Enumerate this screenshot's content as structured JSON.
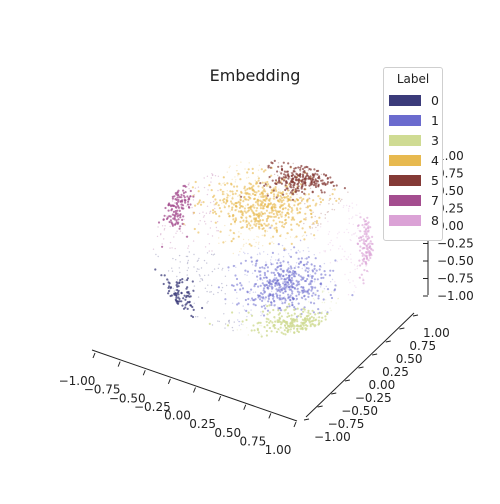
{
  "chart_data": {
    "type": "scatter",
    "title": "Embedding",
    "legend": {
      "title": "Label",
      "placement": "top-right",
      "entries": [
        {
          "label": "0",
          "color": "#3b3b7a"
        },
        {
          "label": "1",
          "color": "#6b6bce"
        },
        {
          "label": "3",
          "color": "#cfdb93"
        },
        {
          "label": "4",
          "color": "#e7b94f"
        },
        {
          "label": "5",
          "color": "#843a36"
        },
        {
          "label": "7",
          "color": "#a44d8f"
        },
        {
          "label": "8",
          "color": "#dba2d6"
        }
      ]
    },
    "x_ticks": [
      "−1.00",
      "−0.75",
      "−0.50",
      "−0.25",
      "0.00",
      "0.25",
      "0.50",
      "0.75",
      "1.00"
    ],
    "y_ticks": [
      "−1.00",
      "−0.75",
      "−0.50",
      "−0.25",
      "0.00",
      "0.25",
      "0.50",
      "0.75",
      "1.00"
    ],
    "z_ticks": [
      "−1.00",
      "−0.75",
      "−0.50",
      "−0.25",
      "0.00",
      "0.25",
      "0.50",
      "0.75",
      "1.00"
    ],
    "xlim": [
      -1,
      1
    ],
    "ylim": [
      -1,
      1
    ],
    "zlim": [
      -1,
      1
    ],
    "grid": false,
    "projection": "3d",
    "xlabel": "",
    "ylabel": "",
    "zlabel": ""
  }
}
